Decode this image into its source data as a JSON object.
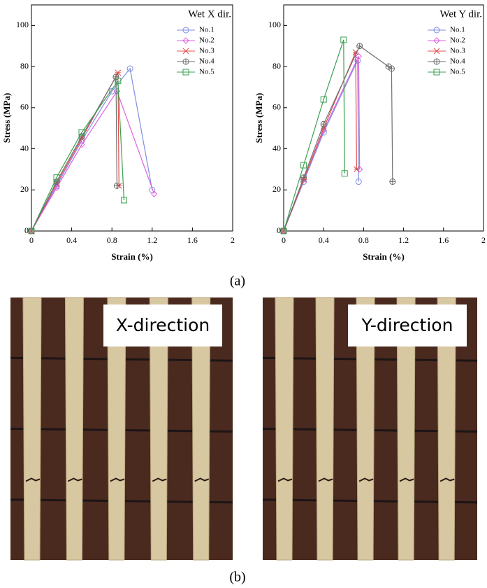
{
  "chart_data": [
    {
      "type": "line",
      "legend_title": "Wet X dir.",
      "xlabel": "Strain (%)",
      "ylabel": "Stress (MPa)",
      "xlim": [
        0,
        2
      ],
      "xticks": [
        0,
        0.4,
        0.8,
        1.2,
        1.6,
        2
      ],
      "ylim": [
        0,
        110
      ],
      "yticks": [
        0,
        20,
        40,
        60,
        80,
        100
      ],
      "legend": "upper right",
      "series": [
        {
          "name": "No.1",
          "color": "#7f8fe0",
          "marker": "circle",
          "x": [
            0,
            0.25,
            0.5,
            0.8,
            0.98,
            1.2
          ],
          "values": [
            0,
            22,
            44,
            68,
            79,
            20
          ]
        },
        {
          "name": "No.2",
          "color": "#e060e0",
          "marker": "diamond",
          "x": [
            0,
            0.25,
            0.5,
            0.85,
            1.22
          ],
          "values": [
            0,
            21,
            42,
            68,
            18
          ]
        },
        {
          "name": "No.3",
          "color": "#e05050",
          "marker": "x",
          "x": [
            0,
            0.25,
            0.5,
            0.86,
            0.87
          ],
          "values": [
            0,
            23,
            45,
            77,
            22
          ]
        },
        {
          "name": "No.4",
          "color": "#707070",
          "marker": "plus",
          "x": [
            0,
            0.25,
            0.5,
            0.84,
            0.85
          ],
          "values": [
            0,
            24,
            46,
            75,
            22
          ]
        },
        {
          "name": "No.5",
          "color": "#3aa050",
          "marker": "square",
          "x": [
            0,
            0.25,
            0.5,
            0.86,
            0.92
          ],
          "values": [
            0,
            26,
            48,
            73,
            15
          ]
        }
      ]
    },
    {
      "type": "line",
      "legend_title": "Wet Y dir.",
      "xlabel": "Strain (%)",
      "ylabel": "Stress (MPa)",
      "xlim": [
        0,
        2
      ],
      "xticks": [
        0,
        0.4,
        0.8,
        1.2,
        1.6,
        2
      ],
      "ylim": [
        0,
        110
      ],
      "yticks": [
        0,
        20,
        40,
        60,
        80,
        100
      ],
      "legend": "upper right",
      "series": [
        {
          "name": "No.1",
          "color": "#7f8fe0",
          "marker": "circle",
          "x": [
            0,
            0.2,
            0.4,
            0.74,
            0.75
          ],
          "values": [
            0,
            24,
            48,
            83,
            24
          ]
        },
        {
          "name": "No.2",
          "color": "#e060e0",
          "marker": "diamond",
          "x": [
            0,
            0.2,
            0.4,
            0.75,
            0.76
          ],
          "values": [
            0,
            25,
            49,
            85,
            30
          ]
        },
        {
          "name": "No.3",
          "color": "#e05050",
          "marker": "x",
          "x": [
            0,
            0.2,
            0.4,
            0.72,
            0.73
          ],
          "values": [
            0,
            25,
            50,
            87,
            30
          ]
        },
        {
          "name": "No.4",
          "color": "#707070",
          "marker": "plus",
          "x": [
            0,
            0.2,
            0.4,
            0.76,
            1.05,
            1.08,
            1.09
          ],
          "values": [
            0,
            26,
            52,
            90,
            80,
            79,
            24
          ]
        },
        {
          "name": "No.5",
          "color": "#3aa050",
          "marker": "square",
          "x": [
            0,
            0.2,
            0.4,
            0.6,
            0.61
          ],
          "values": [
            0,
            32,
            64,
            93,
            28
          ]
        }
      ]
    }
  ],
  "captions": [
    "(a)",
    "(b)"
  ],
  "photos": [
    {
      "label": "X-direction"
    },
    {
      "label": "Y-direction"
    }
  ]
}
